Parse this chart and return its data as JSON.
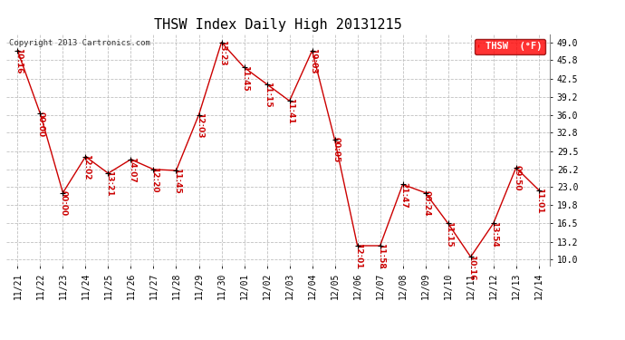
{
  "title": "THSW Index Daily High 20131215",
  "copyright": "Copyright 2013 Cartronics.com",
  "legend_label": "THSW  (°F)",
  "x_labels": [
    "11/21",
    "11/22",
    "11/23",
    "11/24",
    "11/25",
    "11/26",
    "11/27",
    "11/28",
    "11/29",
    "11/30",
    "12/01",
    "12/02",
    "12/03",
    "12/04",
    "12/05",
    "12/06",
    "12/07",
    "12/08",
    "12/09",
    "12/10",
    "12/11",
    "12/12",
    "12/13",
    "12/14"
  ],
  "y_values": [
    47.5,
    36.2,
    22.0,
    28.5,
    25.5,
    28.0,
    26.2,
    26.0,
    36.0,
    49.0,
    44.5,
    41.5,
    38.5,
    47.5,
    31.5,
    12.5,
    12.5,
    23.5,
    22.0,
    16.5,
    10.5,
    16.5,
    26.5,
    22.5
  ],
  "time_labels": [
    "10:16",
    "00:00",
    "00:00",
    "12:02",
    "13:21",
    "14:07",
    "12:20",
    "11:45",
    "12:03",
    "13:23",
    "11:45",
    "11:15",
    "11:41",
    "19:03",
    "00:05",
    "12:01",
    "11:58",
    "21:47",
    "00:24",
    "11:15",
    "10:16",
    "13:54",
    "09:50",
    "11:01"
  ],
  "y_ticks": [
    10.0,
    13.2,
    16.5,
    19.8,
    23.0,
    26.2,
    29.5,
    32.8,
    36.0,
    39.2,
    42.5,
    45.8,
    49.0
  ],
  "ylim": [
    9.0,
    50.5
  ],
  "line_color": "#cc0000",
  "bg_color": "#ffffff",
  "grid_color": "#c0c0c0",
  "title_fontsize": 11,
  "tick_fontsize": 7,
  "annot_fontsize": 6.5,
  "copyright_fontsize": 6.5
}
